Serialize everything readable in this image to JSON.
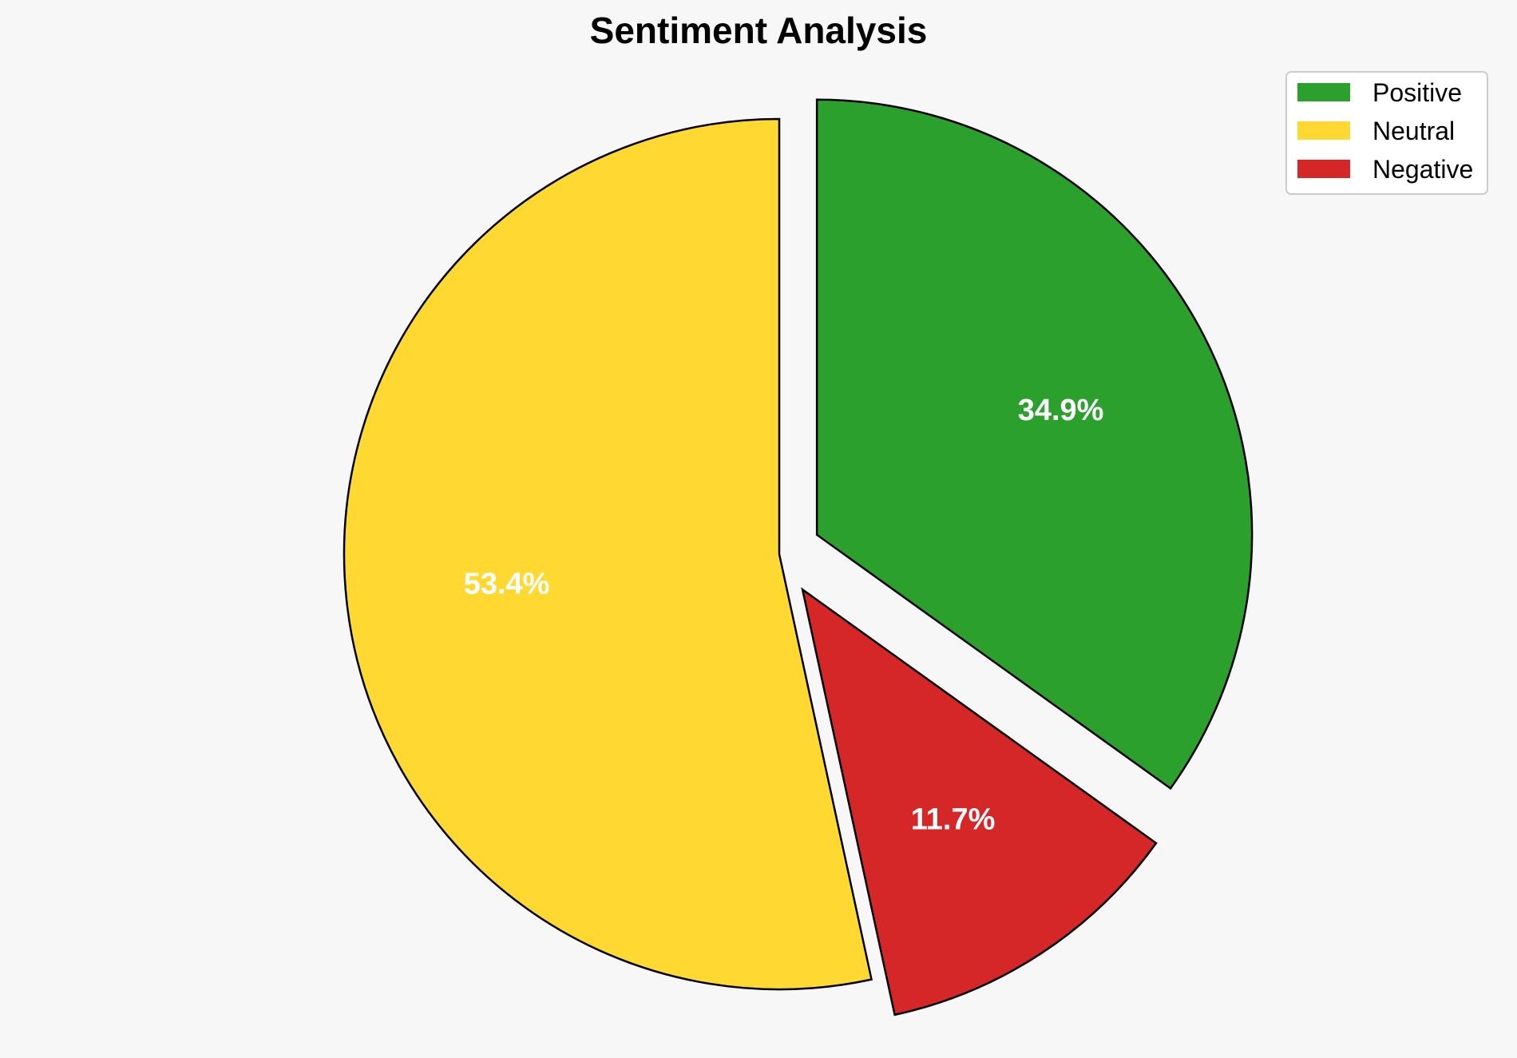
{
  "chart_data": {
    "type": "pie",
    "title": "Sentiment Analysis",
    "start_angle_deg": 90,
    "direction": "counterclockwise",
    "slices": [
      {
        "label": "Neutral",
        "value": 53.4,
        "display": "53.4%",
        "color": "#FFD932",
        "exploded": false
      },
      {
        "label": "Negative",
        "value": 11.7,
        "display": "11.7%",
        "color": "#D62728",
        "exploded": true
      },
      {
        "label": "Positive",
        "value": 34.9,
        "display": "34.9%",
        "color": "#2CA02C",
        "exploded": true
      }
    ],
    "legend": {
      "placement": "top-right",
      "entries": [
        {
          "label": "Positive",
          "color": "#2CA02C"
        },
        {
          "label": "Neutral",
          "color": "#FFD932"
        },
        {
          "label": "Negative",
          "color": "#D62728"
        }
      ]
    },
    "edge_color": "#000000",
    "background": "#F7F7F7"
  }
}
